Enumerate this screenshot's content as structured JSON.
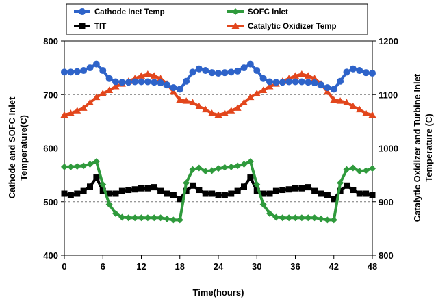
{
  "chart_data": {
    "type": "line",
    "x": [
      0,
      1,
      2,
      3,
      4,
      5,
      6,
      7,
      8,
      9,
      10,
      11,
      12,
      13,
      14,
      15,
      16,
      17,
      18,
      19,
      20,
      21,
      22,
      23,
      24,
      25,
      26,
      27,
      28,
      29,
      30,
      31,
      32,
      33,
      34,
      35,
      36,
      37,
      38,
      39,
      40,
      41,
      42,
      43,
      44,
      45,
      46,
      47,
      48
    ],
    "x_ticks": [
      0,
      6,
      12,
      18,
      24,
      30,
      36,
      42,
      48
    ],
    "x_tick_labels": [
      "0",
      "6",
      "12",
      "18",
      "24",
      "30",
      "36",
      "42",
      "48"
    ],
    "xlim": [
      0,
      48
    ],
    "xlabel": "Time(hours)",
    "ylabel_left_line1": "Cathode  and SOFC Inlet",
    "ylabel_left_line2": "Temperature(C)",
    "ylabel_right_line1": "Catalytic Oxidizer and Turbine Inlet",
    "ylabel_right_line2": "Temperature (C)",
    "ylim_left": [
      400,
      800
    ],
    "y_ticks_left": [
      400,
      500,
      600,
      700,
      800
    ],
    "y_tick_labels_left": [
      "400",
      "500",
      "600",
      "700",
      "800"
    ],
    "ylim_right": [
      800,
      1200
    ],
    "y_ticks_right": [
      800,
      900,
      1000,
      1100,
      1200
    ],
    "y_tick_labels_right": [
      "800",
      "900",
      "1000",
      "1100",
      "1200"
    ],
    "grid": "horizontal dashed",
    "legend_position": "top",
    "series": [
      {
        "name": "Cathode Inet Temp",
        "axis": "left",
        "color": "#2e63c9",
        "marker": "circle",
        "values": [
          742,
          742,
          743,
          745,
          750,
          757,
          745,
          730,
          724,
          723,
          723,
          724,
          724,
          724,
          723,
          722,
          718,
          713,
          710,
          725,
          742,
          748,
          745,
          741,
          740,
          741,
          742,
          744,
          750,
          757,
          745,
          730,
          724,
          723,
          723,
          724,
          724,
          724,
          723,
          722,
          718,
          713,
          710,
          725,
          742,
          748,
          745,
          741,
          740
        ]
      },
      {
        "name": "SOFC Inlet",
        "axis": "left",
        "color": "#2f9a3c",
        "marker": "diamond",
        "values": [
          565,
          565,
          566,
          567,
          570,
          575,
          532,
          495,
          478,
          471,
          470,
          470,
          470,
          470,
          470,
          470,
          468,
          466,
          466,
          535,
          560,
          563,
          557,
          558,
          562,
          564,
          565,
          567,
          570,
          575,
          532,
          495,
          478,
          471,
          470,
          470,
          470,
          470,
          470,
          470,
          468,
          466,
          466,
          535,
          560,
          563,
          557,
          558,
          562
        ]
      },
      {
        "name": "TIT",
        "axis": "right",
        "color": "#000000",
        "marker": "square",
        "values": [
          915,
          912,
          915,
          920,
          928,
          945,
          920,
          915,
          915,
          920,
          922,
          923,
          925,
          925,
          927,
          920,
          915,
          913,
          905,
          920,
          930,
          922,
          915,
          915,
          912,
          912,
          915,
          920,
          928,
          945,
          920,
          915,
          915,
          920,
          922,
          923,
          925,
          925,
          927,
          920,
          915,
          913,
          905,
          920,
          930,
          922,
          915,
          915,
          912
        ]
      },
      {
        "name": "Catalytic Oxidizer Temp",
        "axis": "right",
        "color": "#e2461c",
        "marker": "triangle",
        "values": [
          1062,
          1065,
          1070,
          1075,
          1085,
          1095,
          1102,
          1108,
          1115,
          1120,
          1125,
          1130,
          1135,
          1138,
          1135,
          1130,
          1120,
          1105,
          1090,
          1088,
          1085,
          1078,
          1072,
          1065,
          1062,
          1065,
          1070,
          1075,
          1085,
          1095,
          1102,
          1108,
          1115,
          1120,
          1125,
          1130,
          1135,
          1138,
          1135,
          1130,
          1120,
          1105,
          1090,
          1088,
          1085,
          1078,
          1072,
          1065,
          1062
        ]
      }
    ]
  }
}
